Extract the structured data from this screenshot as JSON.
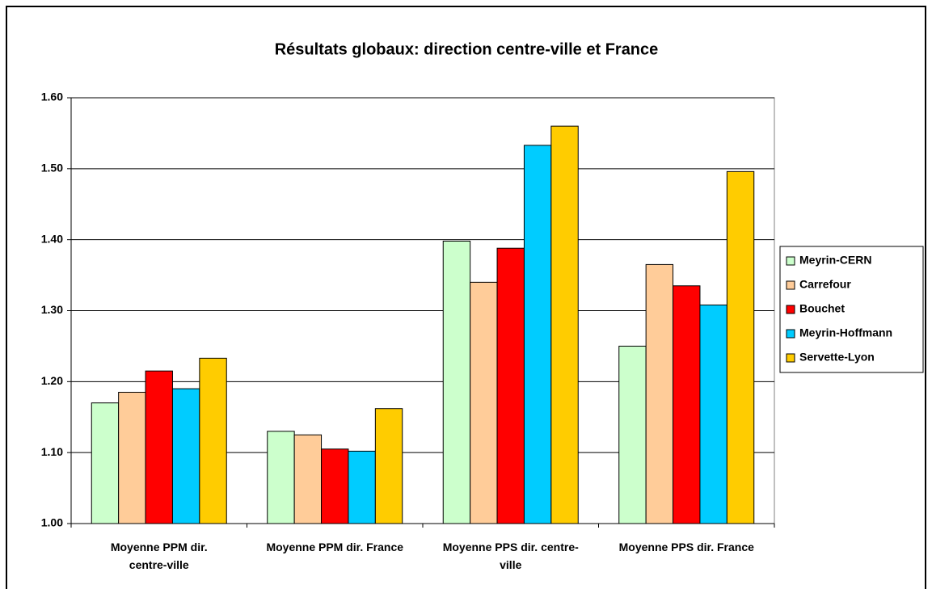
{
  "chart_data": {
    "type": "bar",
    "title": "Résultats globaux: direction centre-ville et France",
    "categories": [
      "Moyenne PPM dir. centre-ville",
      "Moyenne PPM dir. France",
      "Moyenne PPS dir. centre-ville",
      "Moyenne PPS dir. France"
    ],
    "series": [
      {
        "name": "Meyrin-CERN",
        "color": "#ccffcc",
        "values": [
          1.17,
          1.13,
          1.398,
          1.25
        ]
      },
      {
        "name": "Carrefour",
        "color": "#ffcc99",
        "values": [
          1.185,
          1.125,
          1.34,
          1.365
        ]
      },
      {
        "name": "Bouchet",
        "color": "#ff0000",
        "values": [
          1.215,
          1.105,
          1.388,
          1.335
        ]
      },
      {
        "name": "Meyrin-Hoffmann",
        "color": "#00ccff",
        "values": [
          1.19,
          1.102,
          1.533,
          1.308
        ]
      },
      {
        "name": "Servette-Lyon",
        "color": "#ffcc00",
        "values": [
          1.233,
          1.162,
          1.56,
          1.496
        ]
      }
    ],
    "ylim": [
      1.0,
      1.6
    ],
    "yticks": [
      {
        "value": 1.0,
        "label": "1.00"
      },
      {
        "value": 1.1,
        "label": "1.10"
      },
      {
        "value": 1.2,
        "label": "1.20"
      },
      {
        "value": 1.3,
        "label": "1.30"
      },
      {
        "value": 1.4,
        "label": "1.40"
      },
      {
        "value": 1.5,
        "label": "1.50"
      },
      {
        "value": 1.6,
        "label": "1.60"
      }
    ],
    "grid": true,
    "legend": "right"
  }
}
